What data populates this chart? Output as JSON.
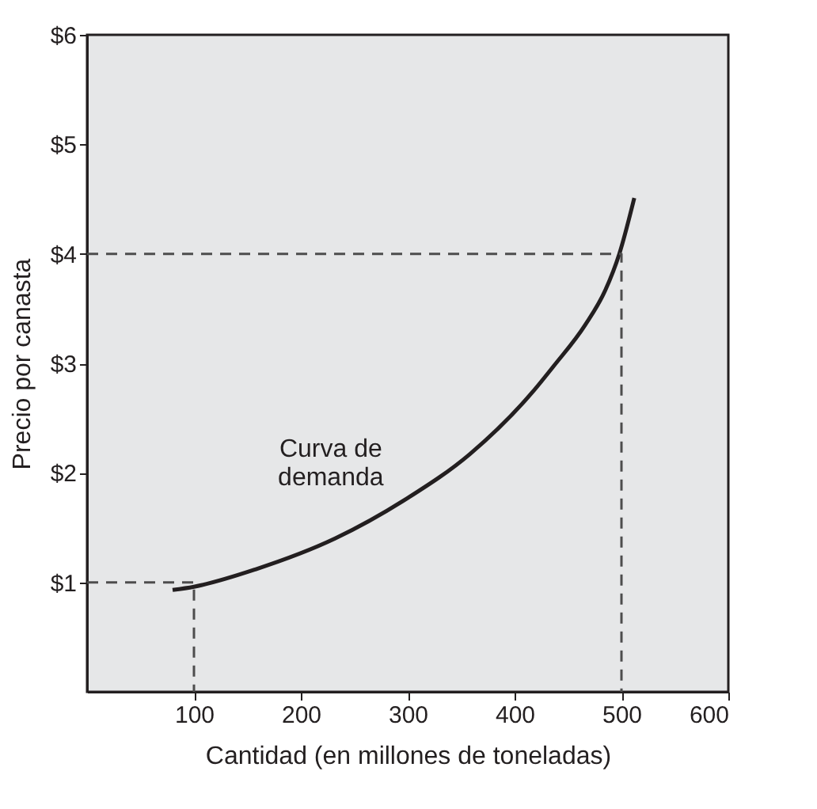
{
  "chart_data": {
    "type": "line",
    "xlabel": "Cantidad (en millones de toneladas)",
    "ylabel": "Precio por canasta",
    "xlim": [
      0,
      600
    ],
    "ylim": [
      0,
      6
    ],
    "xticks": [
      100,
      200,
      300,
      400,
      500,
      600
    ],
    "yticks": [
      {
        "value": 1,
        "label": "$1"
      },
      {
        "value": 2,
        "label": "$2"
      },
      {
        "value": 3,
        "label": "$3"
      },
      {
        "value": 4,
        "label": "$4"
      },
      {
        "value": 5,
        "label": "$5"
      },
      {
        "value": 6,
        "label": "$6"
      }
    ],
    "grid": false,
    "marker": "none",
    "series": [
      {
        "color": "#231f20",
        "line_style": "solid",
        "x": [
          80,
          100,
          158,
          232,
          300,
          358,
          417,
          437,
          466,
          485,
          498,
          512
        ],
        "values": [
          0.93,
          0.96,
          1.12,
          1.4,
          1.77,
          2.17,
          2.74,
          2.98,
          3.35,
          3.67,
          4.0,
          4.51
        ]
      },
      {
        "color": "#4d4d4d",
        "line_style": "dashed",
        "x": [
          0,
          100,
          100
        ],
        "values": [
          1,
          1,
          0
        ]
      },
      {
        "color": "#4d4d4d",
        "line_style": "dashed",
        "x": [
          0,
          500,
          500
        ],
        "values": [
          4,
          4,
          0
        ]
      }
    ],
    "annotations": [
      "Curva de\ndemanda"
    ]
  }
}
